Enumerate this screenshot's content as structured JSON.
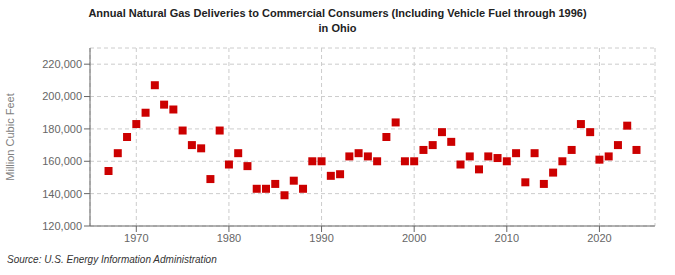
{
  "chart_data": {
    "type": "scatter",
    "title": "Annual Natural Gas Deliveries to Commercial Consumers (Including Vehicle Fuel through 1996)\nin Ohio",
    "ylabel": "Million Cubic Feet",
    "source": "Source: U.S. Energy Information Administration",
    "color": "#cc0000",
    "marker": "square",
    "grid": true,
    "xlim": [
      1965,
      2026
    ],
    "xticks": [
      1970,
      1980,
      1990,
      2000,
      2010,
      2020
    ],
    "ylim": [
      120000,
      230000
    ],
    "yticks": [
      {
        "value": 120000,
        "label": "120,000"
      },
      {
        "value": 140000,
        "label": "140,000"
      },
      {
        "value": 160000,
        "label": "160,000"
      },
      {
        "value": 180000,
        "label": "180,000"
      },
      {
        "value": 200000,
        "label": "200,000"
      },
      {
        "value": 220000,
        "label": "220,000"
      }
    ],
    "x": [
      1967,
      1968,
      1969,
      1970,
      1971,
      1972,
      1973,
      1974,
      1975,
      1976,
      1977,
      1978,
      1979,
      1980,
      1981,
      1982,
      1983,
      1984,
      1985,
      1986,
      1987,
      1988,
      1989,
      1990,
      1991,
      1992,
      1993,
      1994,
      1995,
      1996,
      1997,
      1998,
      1999,
      2000,
      2001,
      2002,
      2003,
      2004,
      2005,
      2006,
      2007,
      2008,
      2009,
      2010,
      2011,
      2012,
      2013,
      2014,
      2015,
      2016,
      2017,
      2018,
      2019,
      2020,
      2021,
      2022,
      2023,
      2024
    ],
    "values": [
      154000,
      165000,
      175000,
      183000,
      190000,
      207000,
      195000,
      192000,
      179000,
      170000,
      168000,
      149000,
      179000,
      158000,
      165000,
      157000,
      143000,
      143000,
      146000,
      139000,
      148000,
      143000,
      160000,
      160000,
      151000,
      152000,
      163000,
      165000,
      163000,
      160000,
      175000,
      184000,
      160000,
      160000,
      167000,
      170000,
      178000,
      172000,
      158000,
      163000,
      155000,
      163000,
      162000,
      160000,
      165000,
      147000,
      165000,
      146000,
      153000,
      160000,
      167000,
      183000,
      178000,
      161000,
      163000,
      170000,
      182000,
      167000
    ]
  }
}
